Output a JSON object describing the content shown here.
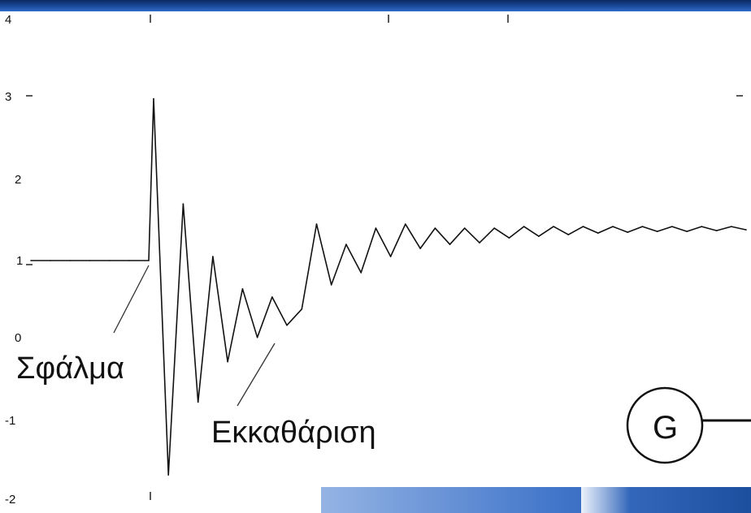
{
  "chart_data": {
    "type": "line",
    "title": "",
    "xlabel": "",
    "ylabel": "",
    "ylim": [
      -2,
      4
    ],
    "yticks": [
      "4",
      "3",
      "2",
      "1",
      "0",
      "-1",
      "-2"
    ],
    "grid": false,
    "series": [
      {
        "values": [
          1.0,
          1.0,
          1.0,
          1.0,
          1.0,
          1.0,
          1.0,
          3.0,
          -1.65,
          1.7,
          -0.75,
          1.05,
          -0.25,
          0.65,
          0.05,
          0.55,
          0.2,
          0.4,
          1.45,
          0.7,
          1.2,
          0.85,
          1.4,
          1.05,
          1.45,
          1.15,
          1.4,
          1.2,
          1.4,
          1.22,
          1.4,
          1.28,
          1.42,
          1.3,
          1.42,
          1.32,
          1.42,
          1.34,
          1.42,
          1.35,
          1.42,
          1.36,
          1.42,
          1.36,
          1.42,
          1.37,
          1.42,
          1.38
        ]
      }
    ],
    "annotations": [
      {
        "text": "Σφάλμα"
      },
      {
        "text": "Εκκαθάριση"
      }
    ]
  },
  "generator": {
    "label": "G"
  }
}
